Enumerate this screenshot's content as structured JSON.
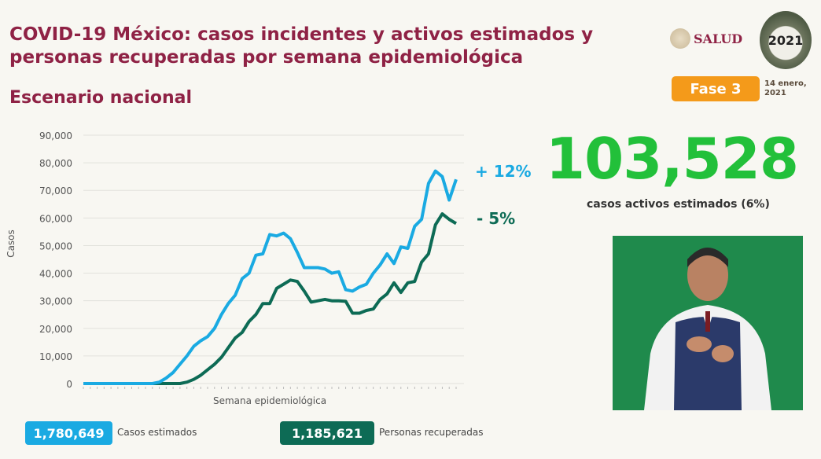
{
  "header": {
    "title": "COVID-19 México: casos incidentes y activos estimados y personas recuperadas por semana epidemiológica",
    "subtitle": "Escenario nacional",
    "logo_text": "SALUD",
    "logo2021_text": "2021",
    "phase_label": "Fase 3",
    "date": "14 enero, 2021"
  },
  "headline": {
    "value": "103,528",
    "caption": "casos activos estimados (6%)"
  },
  "colors": {
    "estimated": "#1aaae2",
    "recovered": "#0d6b55",
    "title": "#8f2245",
    "headline": "#22c03a",
    "phase": "#f49a1a"
  },
  "chart_data": {
    "type": "line",
    "xlabel": "Semana epidemiológica",
    "ylabel": "Casos",
    "ylim": [
      0,
      90000
    ],
    "yticks": [
      "0",
      "10,000",
      "20,000",
      "30,000",
      "40,000",
      "50,000",
      "60,000",
      "70,000",
      "80,000",
      "90,000"
    ],
    "grid": true,
    "series": [
      {
        "name": "Casos estimados",
        "total": "1,780,649",
        "change": "+ 12%",
        "values": [
          0,
          0,
          0,
          0,
          0,
          0,
          0,
          0,
          0,
          0,
          0,
          500,
          2000,
          4000,
          7000,
          10000,
          13500,
          15500,
          17000,
          20000,
          25000,
          29000,
          32000,
          38000,
          40000,
          46500,
          47000,
          54000,
          53500,
          54500,
          52500,
          47500,
          42000,
          42000,
          42000,
          41500,
          40000,
          40500,
          34000,
          33500,
          35000,
          36000,
          40000,
          43000,
          47000,
          43500,
          49500,
          49000,
          57000,
          59500,
          72500,
          77000,
          75000,
          66500,
          74000
        ]
      },
      {
        "name": "Personas recuperadas",
        "total": "1,185,621",
        "change": "- 5%",
        "values": [
          0,
          0,
          0,
          0,
          0,
          0,
          0,
          0,
          0,
          0,
          0,
          0,
          0,
          0,
          0,
          500,
          1500,
          3000,
          5000,
          7000,
          9500,
          13000,
          16500,
          18500,
          22500,
          25000,
          29000,
          29000,
          34500,
          36000,
          37500,
          37000,
          33500,
          29500,
          30000,
          30500,
          30000,
          30000,
          29800,
          25500,
          25500,
          26500,
          27000,
          30500,
          32500,
          36500,
          33000,
          36500,
          37000,
          44000,
          47000,
          57500,
          61500,
          59500,
          58000
        ]
      }
    ]
  }
}
